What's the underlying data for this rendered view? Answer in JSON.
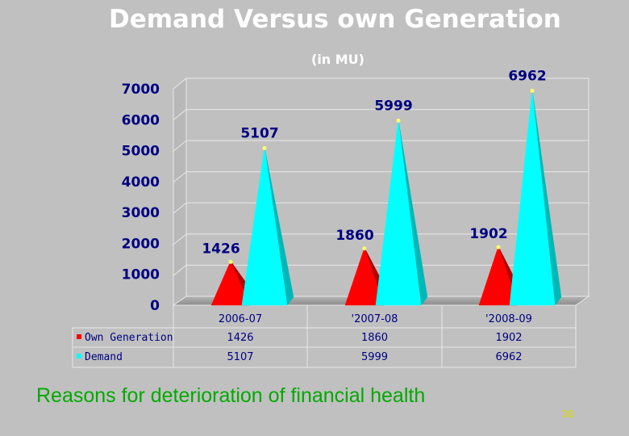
{
  "slide": {
    "title": "Demand Versus own Generation",
    "subtitle": "(in MU)",
    "footer": "Reasons for deterioration of financial health",
    "page_number": "36"
  },
  "chart_data": {
    "type": "bar",
    "shape": "pyramid",
    "title": "Demand Versus own Generation",
    "subtitle": "(in MU)",
    "categories": [
      "2006-07",
      "'2007-08",
      "'2008-09"
    ],
    "ylim": [
      0,
      7000
    ],
    "yticks": [
      0,
      1000,
      2000,
      3000,
      4000,
      5000,
      6000,
      7000
    ],
    "grid": true,
    "legend_placement": "data-table-below",
    "series": [
      {
        "name": "Own Generation",
        "values": [
          1426,
          1860,
          1902
        ],
        "color": "#ff0000"
      },
      {
        "name": "Demand",
        "values": [
          5107,
          5999,
          6962
        ],
        "color": "#00ffff"
      }
    ],
    "data_table": {
      "rows": [
        {
          "label": "Own Generation",
          "values": [
            "1426",
            "1860",
            "1902"
          ]
        },
        {
          "label": "Demand",
          "values": [
            "5107",
            "5999",
            "6962"
          ]
        }
      ]
    }
  }
}
